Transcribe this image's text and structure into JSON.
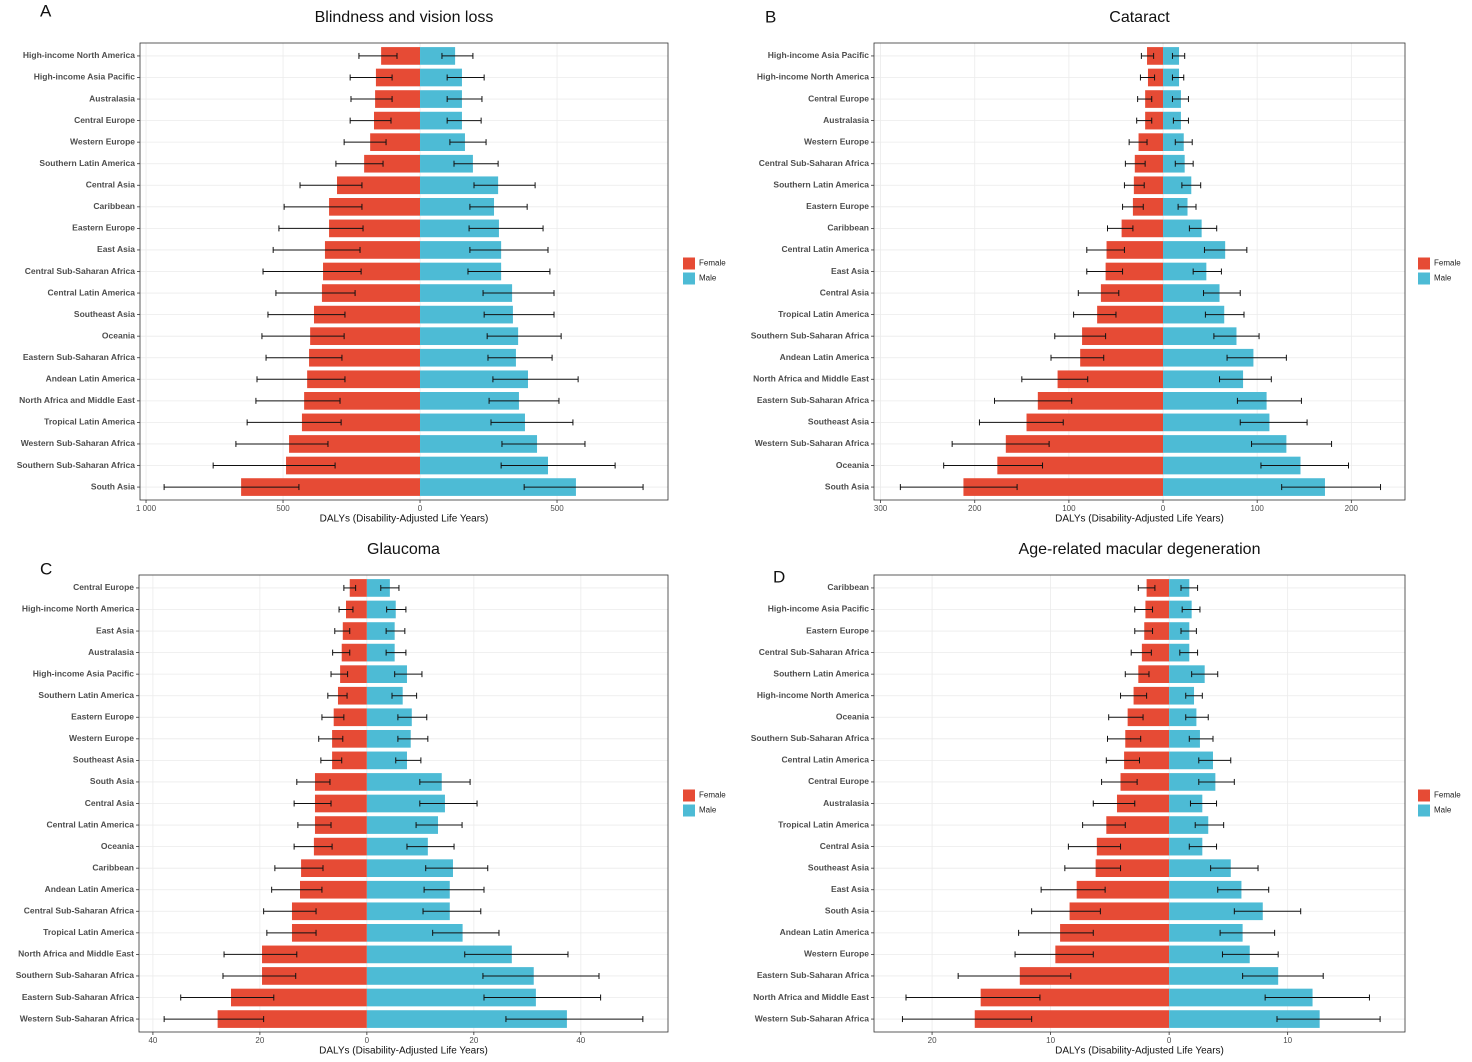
{
  "chart_data": [
    {
      "type": "bar",
      "panel_label": "A",
      "title": "Blindness and vision loss",
      "x_label": "DALYs (Disability-Adjusted Life Years)",
      "legend": "right",
      "grid": true,
      "categories": [
        "High-income North America",
        "High-income Asia Pacific",
        "Australasia",
        "Central Europe",
        "Western Europe",
        "Southern Latin America",
        "Central Asia",
        "Caribbean",
        "Eastern Europe",
        "East Asia",
        "Central Sub-Saharan Africa",
        "Central Latin America",
        "Southeast Asia",
        "Oceania",
        "Eastern Sub-Saharan Africa",
        "Andean Latin America",
        "North Africa and Middle East",
        "Tropical Latin America",
        "Western Sub-Saharan Africa",
        "Southern Sub-Saharan Africa",
        "South Asia"
      ],
      "series": [
        {
          "name": "Female",
          "color": "#e64b35",
          "values": [
            142,
            161,
            164,
            168,
            182,
            204,
            303,
            332,
            332,
            347,
            354,
            358,
            387,
            401,
            405,
            412,
            423,
            431,
            478,
            489,
            653
          ],
          "lower": [
            84,
            102,
            102,
            106,
            124,
            135,
            212,
            212,
            208,
            219,
            215,
            237,
            274,
            277,
            285,
            274,
            292,
            288,
            336,
            310,
            442
          ],
          "upper": [
            223,
            255,
            252,
            255,
            277,
            307,
            438,
            496,
            515,
            536,
            573,
            526,
            555,
            577,
            562,
            595,
            599,
            631,
            672,
            755,
            934
          ]
        },
        {
          "name": "Male",
          "color": "#4dbbd5",
          "values": [
            128,
            153,
            153,
            153,
            164,
            193,
            285,
            270,
            288,
            296,
            296,
            336,
            339,
            358,
            350,
            394,
            361,
            383,
            427,
            467,
            569
          ],
          "lower": [
            80,
            99,
            99,
            99,
            109,
            124,
            197,
            182,
            179,
            182,
            175,
            230,
            234,
            245,
            248,
            266,
            252,
            259,
            299,
            296,
            380
          ],
          "upper": [
            193,
            234,
            226,
            223,
            241,
            285,
            420,
            391,
            449,
            467,
            474,
            489,
            489,
            515,
            482,
            577,
            507,
            558,
            602,
            712,
            814
          ]
        }
      ],
      "xlim": [
        -1022,
        905
      ],
      "xticks": [
        {
          "value": -1000,
          "label": "1 000"
        },
        {
          "value": -500,
          "label": "500"
        },
        0,
        500
      ]
    },
    {
      "type": "bar",
      "panel_label": "B",
      "title": "Cataract",
      "x_label": "DALYs (Disability-Adjusted Life Years)",
      "legend": "right",
      "grid": true,
      "categories": [
        "High-income Asia Pacific",
        "High-income North America",
        "Central Europe",
        "Australasia",
        "Western Europe",
        "Central Sub-Saharan Africa",
        "Southern Latin America",
        "Eastern Europe",
        "Caribbean",
        "Central Latin America",
        "East Asia",
        "Central Asia",
        "Tropical Latin America",
        "Southern Sub-Saharan Africa",
        "Andean Latin America",
        "North Africa and Middle East",
        "Eastern Sub-Saharan Africa",
        "Southeast Asia",
        "Western Sub-Saharan Africa",
        "Oceania",
        "South Asia"
      ],
      "series": [
        {
          "name": "Female",
          "color": "#e64b35",
          "values": [
            17,
            16,
            19,
            19,
            26,
            30,
            31,
            32,
            44,
            60,
            61,
            66,
            70,
            86,
            88,
            112,
            133,
            145,
            167,
            176,
            212
          ],
          "lower": [
            10,
            9,
            12,
            12,
            17,
            19,
            20,
            21,
            32,
            41,
            43,
            47,
            50,
            61,
            63,
            80,
            97,
            106,
            121,
            128,
            155
          ],
          "upper": [
            23,
            24,
            27,
            28,
            36,
            40,
            41,
            43,
            59,
            81,
            81,
            90,
            95,
            115,
            119,
            150,
            179,
            195,
            224,
            233,
            279
          ]
        },
        {
          "name": "Male",
          "color": "#4dbbd5",
          "values": [
            17,
            17,
            19,
            19,
            22,
            23,
            30,
            26,
            41,
            66,
            46,
            60,
            65,
            78,
            96,
            85,
            110,
            113,
            131,
            146,
            172
          ],
          "lower": [
            10,
            10,
            10,
            11,
            13,
            13,
            20,
            16,
            28,
            44,
            32,
            43,
            45,
            54,
            68,
            60,
            79,
            82,
            94,
            104,
            126
          ],
          "upper": [
            23,
            22,
            27,
            27,
            31,
            32,
            40,
            35,
            57,
            89,
            62,
            82,
            86,
            102,
            131,
            115,
            147,
            153,
            179,
            197,
            231
          ]
        }
      ],
      "xlim": [
        -307,
        257
      ],
      "xticks": [
        {
          "value": -300,
          "label": "300"
        },
        {
          "value": -200,
          "label": "200"
        },
        {
          "value": -100,
          "label": "100"
        },
        0,
        100,
        200
      ]
    },
    {
      "type": "bar",
      "panel_label": "C",
      "title": "Glaucoma",
      "x_label": "DALYs (Disability-Adjusted Life Years)",
      "legend": "right",
      "grid": true,
      "categories": [
        "Central Europe",
        "High-income North America",
        "East Asia",
        "Australasia",
        "High-income Asia Pacific",
        "Southern Latin America",
        "Eastern Europe",
        "Western Europe",
        "Southeast Asia",
        "South Asia",
        "Central Asia",
        "Central Latin America",
        "Oceania",
        "Caribbean",
        "Andean Latin America",
        "Central Sub-Saharan Africa",
        "Tropical Latin America",
        "North Africa and Middle East",
        "Southern Sub-Saharan Africa",
        "Eastern Sub-Saharan Africa",
        "Western Sub-Saharan Africa"
      ],
      "series": [
        {
          "name": "Female",
          "color": "#e64b35",
          "values": [
            3.2,
            3.9,
            4.5,
            4.7,
            5.0,
            5.4,
            6.2,
            6.5,
            6.5,
            9.7,
            9.7,
            9.7,
            9.9,
            12.3,
            12.5,
            14.0,
            14.0,
            19.6,
            19.6,
            25.4,
            27.9
          ],
          "lower": [
            2.1,
            2.6,
            3.2,
            3.2,
            3.6,
            3.7,
            4.3,
            4.5,
            4.7,
            6.9,
            6.7,
            6.7,
            6.5,
            8.2,
            8.4,
            9.5,
            9.5,
            13.1,
            13.3,
            17.4,
            19.3
          ],
          "upper": [
            4.3,
            5.2,
            6.0,
            6.4,
            6.7,
            7.3,
            8.4,
            9.0,
            8.6,
            13.1,
            13.6,
            12.9,
            13.6,
            17.2,
            17.8,
            19.3,
            18.7,
            26.7,
            26.9,
            34.8,
            37.9
          ]
        },
        {
          "name": "Male",
          "color": "#4dbbd5",
          "values": [
            4.3,
            5.4,
            5.2,
            5.2,
            7.5,
            6.7,
            8.4,
            8.2,
            7.5,
            14.0,
            14.6,
            13.3,
            11.4,
            16.1,
            15.5,
            15.5,
            17.9,
            27.1,
            31.2,
            31.6,
            37.4
          ],
          "lower": [
            2.6,
            3.7,
            3.6,
            3.6,
            5.2,
            4.7,
            5.8,
            5.8,
            5.4,
            9.9,
            9.9,
            9.2,
            7.5,
            11.0,
            10.7,
            10.5,
            12.3,
            18.3,
            21.7,
            21.9,
            26.0
          ],
          "upper": [
            6.0,
            7.3,
            7.1,
            7.3,
            10.3,
            9.3,
            11.2,
            11.4,
            10.1,
            19.3,
            20.6,
            17.8,
            16.3,
            22.6,
            21.9,
            21.3,
            24.7,
            37.6,
            43.4,
            43.7,
            51.6
          ]
        }
      ],
      "xlim": [
        -42.6,
        56.3
      ],
      "xticks": [
        {
          "value": -40,
          "label": "40"
        },
        {
          "value": -20,
          "label": "20"
        },
        0,
        20,
        40
      ]
    },
    {
      "type": "bar",
      "panel_label": "D",
      "title": "Age-related macular degeneration",
      "x_label": "DALYs (Disability-Adjusted Life Years)",
      "legend": "right",
      "grid": true,
      "categories": [
        "Caribbean",
        "High-income Asia Pacific",
        "Eastern Europe",
        "Central Sub-Saharan Africa",
        "Southern Latin America",
        "High-income North America",
        "Oceania",
        "Southern Sub-Saharan Africa",
        "Central Latin America",
        "Central Europe",
        "Australasia",
        "Tropical Latin America",
        "Central Asia",
        "Southeast Asia",
        "East Asia",
        "South Asia",
        "Andean Latin America",
        "Western Europe",
        "Eastern Sub-Saharan Africa",
        "North Africa and Middle East",
        "Western Sub-Saharan Africa"
      ],
      "series": [
        {
          "name": "Female",
          "color": "#e64b35",
          "values": [
            1.9,
            2.0,
            2.1,
            2.3,
            2.6,
            3.0,
            3.5,
            3.7,
            3.8,
            4.1,
            4.4,
            5.3,
            6.1,
            6.2,
            7.8,
            8.4,
            9.2,
            9.6,
            12.6,
            15.9,
            16.4
          ],
          "lower": [
            1.2,
            1.4,
            1.4,
            1.5,
            1.7,
            1.9,
            2.2,
            2.4,
            2.5,
            2.7,
            2.9,
            3.7,
            4.1,
            4.1,
            5.4,
            5.8,
            6.4,
            6.4,
            8.3,
            10.9,
            11.6
          ],
          "upper": [
            2.6,
            2.9,
            2.9,
            3.2,
            3.7,
            4.1,
            5.1,
            5.2,
            5.3,
            5.7,
            6.4,
            7.3,
            8.5,
            8.8,
            10.8,
            11.6,
            12.7,
            13.0,
            17.8,
            22.2,
            22.5
          ]
        },
        {
          "name": "Male",
          "color": "#4dbbd5",
          "values": [
            1.7,
            1.9,
            1.7,
            1.7,
            3.0,
            2.1,
            2.3,
            2.6,
            3.7,
            3.9,
            2.8,
            3.3,
            2.8,
            5.2,
            6.1,
            7.9,
            6.2,
            6.8,
            9.2,
            12.1,
            12.7
          ],
          "lower": [
            1.0,
            1.1,
            1.0,
            0.9,
            1.9,
            1.4,
            1.4,
            1.7,
            2.5,
            2.5,
            1.8,
            2.2,
            1.7,
            3.5,
            4.1,
            5.5,
            4.3,
            4.5,
            6.2,
            8.1,
            9.1
          ],
          "upper": [
            2.4,
            2.6,
            2.3,
            2.4,
            4.1,
            2.8,
            3.3,
            3.7,
            5.2,
            5.5,
            4.0,
            4.6,
            4.0,
            7.5,
            8.4,
            11.1,
            8.9,
            9.2,
            13.0,
            16.9,
            17.8
          ]
        }
      ],
      "xlim": [
        -24.9,
        19.9
      ],
      "xticks": [
        {
          "value": -20,
          "label": "20"
        },
        {
          "value": -10,
          "label": "10"
        },
        0,
        10
      ]
    }
  ]
}
